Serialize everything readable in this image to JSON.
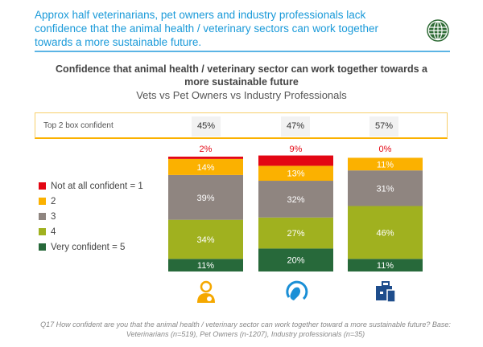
{
  "headline": "Approx half veterinarians, pet owners and industry professionals lack confidence that the animal health / veterinary sectors can work together towards a more sustainable future.",
  "chart_data": {
    "type": "bar",
    "stacked": true,
    "title": "Confidence that animal health / veterinary sector can work together towards a more sustainable future",
    "subtitle": "Vets vs Pet Owners vs Industry Professionals",
    "categories": [
      "Veterinarians",
      "Pet Owners",
      "Industry Professionals"
    ],
    "category_icons": [
      "vet-icon",
      "pet-owner-icon",
      "briefcase-icon"
    ],
    "top2_label": "Top 2 box confident",
    "top2_values": [
      "45%",
      "47%",
      "57%"
    ],
    "series": [
      {
        "name": "Very confident = 5",
        "color": "#27693a",
        "values": [
          11,
          20,
          11
        ]
      },
      {
        "name": "4",
        "color": "#a0b11f",
        "values": [
          34,
          27,
          46
        ]
      },
      {
        "name": "3",
        "color": "#8f8580",
        "values": [
          39,
          32,
          31
        ]
      },
      {
        "name": "2",
        "color": "#fbb100",
        "values": [
          14,
          13,
          11
        ]
      },
      {
        "name": "Not at all confident = 1",
        "color": "#e30613",
        "values": [
          2,
          9,
          0
        ]
      }
    ],
    "legend_order": [
      "Not at all confident = 1",
      "2",
      "3",
      "4",
      "Very confident = 5"
    ],
    "legend_position": "left",
    "ylim": [
      0,
      100
    ]
  },
  "footnote": "Q17 How confident are you that the animal health / veterinary sector can work together toward a more sustainable future?  Base: Veterinarians (n=519), Pet Owners (n-1207), Industry professionals (n=35)"
}
